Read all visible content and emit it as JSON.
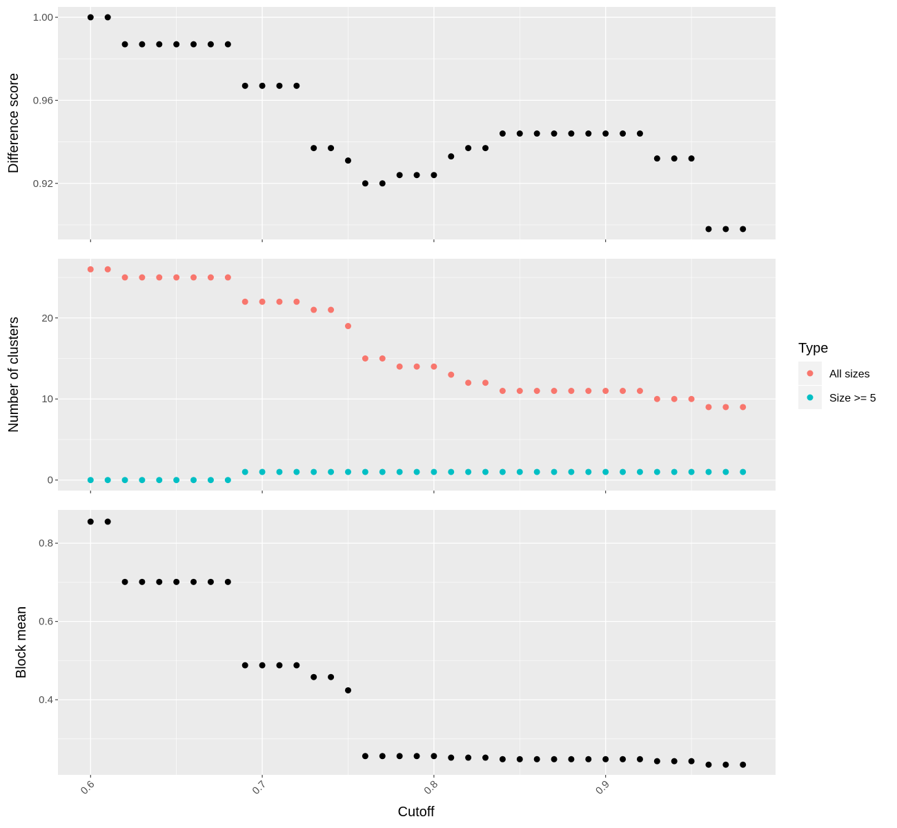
{
  "chart_data": [
    {
      "type": "scatter",
      "panel": "top",
      "ylabel": "Difference score",
      "ylim": [
        0.893,
        1.005
      ],
      "yticks": [
        0.92,
        0.96,
        1.0
      ],
      "ytick_labels": [
        "0.92",
        "0.96",
        "1.00"
      ],
      "grid": true,
      "series": [
        {
          "color": "#000000",
          "x": [
            0.6,
            0.61,
            0.62,
            0.63,
            0.64,
            0.65,
            0.66,
            0.67,
            0.68,
            0.69,
            0.7,
            0.71,
            0.72,
            0.73,
            0.74,
            0.75,
            0.76,
            0.77,
            0.78,
            0.79,
            0.8,
            0.81,
            0.82,
            0.83,
            0.84,
            0.85,
            0.86,
            0.87,
            0.88,
            0.89,
            0.9,
            0.91,
            0.92,
            0.93,
            0.94,
            0.95,
            0.96,
            0.97,
            0.98
          ],
          "y": [
            1.0,
            1.0,
            0.987,
            0.987,
            0.987,
            0.987,
            0.987,
            0.987,
            0.987,
            0.967,
            0.967,
            0.967,
            0.967,
            0.937,
            0.937,
            0.931,
            0.92,
            0.92,
            0.924,
            0.924,
            0.924,
            0.933,
            0.937,
            0.937,
            0.944,
            0.944,
            0.944,
            0.944,
            0.944,
            0.944,
            0.944,
            0.944,
            0.944,
            0.932,
            0.932,
            0.932,
            0.898,
            0.898,
            0.898
          ]
        }
      ]
    },
    {
      "type": "scatter",
      "panel": "middle",
      "ylabel": "Number of clusters",
      "ylim": [
        -1.3,
        27.3
      ],
      "yticks": [
        0,
        10,
        20
      ],
      "ytick_labels": [
        "0",
        "10",
        "20"
      ],
      "grid": true,
      "series": [
        {
          "name": "All sizes",
          "color": "#F8766D",
          "x": [
            0.6,
            0.61,
            0.62,
            0.63,
            0.64,
            0.65,
            0.66,
            0.67,
            0.68,
            0.69,
            0.7,
            0.71,
            0.72,
            0.73,
            0.74,
            0.75,
            0.76,
            0.77,
            0.78,
            0.79,
            0.8,
            0.81,
            0.82,
            0.83,
            0.84,
            0.85,
            0.86,
            0.87,
            0.88,
            0.89,
            0.9,
            0.91,
            0.92,
            0.93,
            0.94,
            0.95,
            0.96,
            0.97,
            0.98
          ],
          "y": [
            26,
            26,
            25,
            25,
            25,
            25,
            25,
            25,
            25,
            22,
            22,
            22,
            22,
            21,
            21,
            19,
            15,
            15,
            14,
            14,
            14,
            13,
            12,
            12,
            11,
            11,
            11,
            11,
            11,
            11,
            11,
            11,
            11,
            10,
            10,
            10,
            9,
            9,
            9
          ]
        },
        {
          "name": "Size >= 5",
          "color": "#00BFC4",
          "x": [
            0.6,
            0.61,
            0.62,
            0.63,
            0.64,
            0.65,
            0.66,
            0.67,
            0.68,
            0.69,
            0.7,
            0.71,
            0.72,
            0.73,
            0.74,
            0.75,
            0.76,
            0.77,
            0.78,
            0.79,
            0.8,
            0.81,
            0.82,
            0.83,
            0.84,
            0.85,
            0.86,
            0.87,
            0.88,
            0.89,
            0.9,
            0.91,
            0.92,
            0.93,
            0.94,
            0.95,
            0.96,
            0.97,
            0.98
          ],
          "y": [
            0,
            0,
            0,
            0,
            0,
            0,
            0,
            0,
            0,
            1,
            1,
            1,
            1,
            1,
            1,
            1,
            1,
            1,
            1,
            1,
            1,
            1,
            1,
            1,
            1,
            1,
            1,
            1,
            1,
            1,
            1,
            1,
            1,
            1,
            1,
            1,
            1,
            1,
            1
          ]
        }
      ]
    },
    {
      "type": "scatter",
      "panel": "bottom",
      "ylabel": "Block mean",
      "ylim": [
        0.208,
        0.885
      ],
      "yticks": [
        0.4,
        0.6,
        0.8
      ],
      "ytick_labels": [
        "0.4",
        "0.6",
        "0.8"
      ],
      "grid": true,
      "series": [
        {
          "color": "#000000",
          "x": [
            0.6,
            0.61,
            0.62,
            0.63,
            0.64,
            0.65,
            0.66,
            0.67,
            0.68,
            0.69,
            0.7,
            0.71,
            0.72,
            0.73,
            0.74,
            0.75,
            0.76,
            0.77,
            0.78,
            0.79,
            0.8,
            0.81,
            0.82,
            0.83,
            0.84,
            0.85,
            0.86,
            0.87,
            0.88,
            0.89,
            0.9,
            0.91,
            0.92,
            0.93,
            0.94,
            0.95,
            0.96,
            0.97,
            0.98
          ],
          "y": [
            0.855,
            0.855,
            0.701,
            0.701,
            0.701,
            0.701,
            0.701,
            0.701,
            0.701,
            0.488,
            0.488,
            0.488,
            0.488,
            0.458,
            0.458,
            0.424,
            0.256,
            0.256,
            0.256,
            0.256,
            0.256,
            0.252,
            0.252,
            0.252,
            0.248,
            0.248,
            0.248,
            0.248,
            0.248,
            0.248,
            0.248,
            0.248,
            0.248,
            0.243,
            0.243,
            0.243,
            0.234,
            0.234,
            0.234
          ]
        }
      ]
    }
  ],
  "x_axis": {
    "label": "Cutoff",
    "xlim": [
      0.581,
      0.999
    ],
    "ticks": [
      0.6,
      0.7,
      0.8,
      0.9
    ],
    "tick_labels": [
      "0.6",
      "0.7",
      "0.8",
      "0.9"
    ]
  },
  "legend": {
    "title": "Type",
    "placement": "right",
    "items": [
      {
        "label": "All sizes",
        "color": "#F8766D"
      },
      {
        "label": "Size >= 5",
        "color": "#00BFC4"
      }
    ]
  },
  "style": {
    "panel_bg": "#EBEBEB",
    "grid_color": "#FFFFFF",
    "tick_color": "#333333"
  }
}
